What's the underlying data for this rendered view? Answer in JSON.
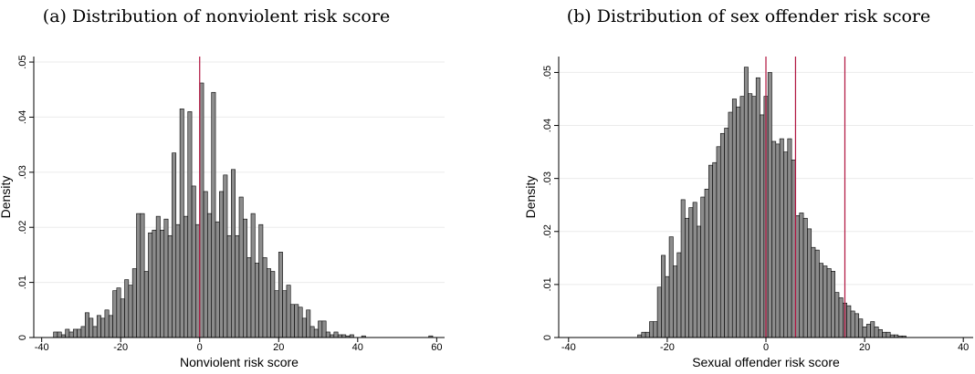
{
  "chart_data": [
    {
      "type": "histogram",
      "title": "(a) Distribution of nonviolent risk score",
      "xlabel": "Nonviolent risk score",
      "ylabel": "Density",
      "bins": [
        -37,
        -36,
        -35,
        -34,
        -33,
        -32,
        -31,
        -30,
        -29,
        -28,
        -27,
        -26,
        -25,
        -24,
        -23,
        -22,
        -21,
        -20,
        -19,
        -18,
        -17,
        -16,
        -15,
        -14,
        -13,
        -12,
        -11,
        -10,
        -9,
        -8,
        -7,
        -6,
        -5,
        -4,
        -3,
        -2,
        -1,
        0,
        1,
        2,
        3,
        4,
        5,
        6,
        7,
        8,
        9,
        10,
        11,
        12,
        13,
        14,
        15,
        16,
        17,
        18,
        19,
        20,
        21,
        22,
        23,
        24,
        25,
        26,
        27,
        28,
        29,
        30,
        31,
        32,
        33,
        34,
        35,
        36,
        37,
        38,
        39,
        40,
        41,
        42,
        43,
        44,
        45,
        46,
        47,
        48,
        49,
        50,
        51,
        52,
        53,
        54,
        55,
        56,
        57,
        58,
        59
      ],
      "values": [
        0.001,
        0.001,
        0.0005,
        0.0015,
        0.001,
        0.0015,
        0.0015,
        0.002,
        0.0045,
        0.0035,
        0.002,
        0.004,
        0.0035,
        0.005,
        0.004,
        0.0085,
        0.009,
        0.007,
        0.0105,
        0.0095,
        0.0125,
        0.0225,
        0.0225,
        0.012,
        0.019,
        0.0195,
        0.022,
        0.0195,
        0.0215,
        0.0185,
        0.0335,
        0.0205,
        0.0415,
        0.022,
        0.041,
        0.0275,
        0.0205,
        0.0462,
        0.0265,
        0.0225,
        0.0445,
        0.021,
        0.0265,
        0.0295,
        0.0185,
        0.0305,
        0.0185,
        0.0255,
        0.0215,
        0.0145,
        0.0225,
        0.0135,
        0.0205,
        0.0145,
        0.0125,
        0.012,
        0.0085,
        0.0155,
        0.0085,
        0.0095,
        0.006,
        0.006,
        0.0055,
        0.0035,
        0.005,
        0.002,
        0.0015,
        0.003,
        0.003,
        0.001,
        0.0005,
        0.001,
        0.0005,
        0.0005,
        0.0003,
        0.0005,
        0,
        0,
        0.0003,
        0,
        0,
        0,
        0,
        0,
        0,
        0,
        0,
        0,
        0,
        0,
        0,
        0,
        0,
        0,
        0,
        0.0003
      ],
      "color": "#8c8c8c",
      "vlines": [
        0
      ],
      "vline_color": "#b0133e",
      "xlim": [
        -42,
        62
      ],
      "xticks": [
        -40,
        -20,
        0,
        20,
        40,
        60
      ],
      "ylim": [
        0,
        0.051
      ],
      "yticks": [
        0,
        {
          "value": 0.01,
          "label": ".01"
        },
        {
          "value": 0.02,
          "label": ".02"
        },
        {
          "value": 0.03,
          "label": ".03"
        },
        {
          "value": 0.04,
          "label": ".04"
        },
        {
          "value": 0.05,
          "label": ".05"
        }
      ],
      "grid": true
    },
    {
      "type": "histogram",
      "title": "(b) Distribution of sex offender risk score",
      "xlabel": "Sexual offender risk score",
      "ylabel": "Density",
      "bins": [
        -26,
        -25.2,
        -24.4,
        -23.6,
        -22.8,
        -22,
        -21.2,
        -20.4,
        -19.6,
        -18.8,
        -18,
        -17.2,
        -16.4,
        -15.6,
        -14.8,
        -14,
        -13.2,
        -12.4,
        -11.6,
        -10.8,
        -10,
        -9.2,
        -8.4,
        -7.6,
        -6.8,
        -6,
        -5.2,
        -4.4,
        -3.6,
        -2.8,
        -2,
        -1.2,
        -0.4,
        0.4,
        1.2,
        2,
        2.8,
        3.6,
        4.4,
        5.2,
        6,
        6.8,
        7.6,
        8.4,
        9.2,
        10,
        10.8,
        11.6,
        12.4,
        13.2,
        14,
        14.8,
        15.6,
        16.4,
        17.2,
        18,
        18.8,
        19.6,
        20.4,
        21.2,
        22,
        22.8,
        23.6,
        24.4,
        25.2,
        26,
        26.8,
        27.6,
        28.4
      ],
      "values": [
        0.0005,
        0.001,
        0.001,
        0.003,
        0.003,
        0.0095,
        0.0155,
        0.0115,
        0.019,
        0.0135,
        0.016,
        0.026,
        0.0225,
        0.0245,
        0.0255,
        0.021,
        0.0265,
        0.028,
        0.0325,
        0.033,
        0.036,
        0.0385,
        0.0395,
        0.0425,
        0.045,
        0.0435,
        0.0455,
        0.051,
        0.046,
        0.0455,
        0.049,
        0.042,
        0.0455,
        0.05,
        0.037,
        0.0365,
        0.0375,
        0.035,
        0.0375,
        0.0335,
        0.023,
        0.0235,
        0.0225,
        0.0205,
        0.017,
        0.0165,
        0.014,
        0.0135,
        0.013,
        0.0125,
        0.0085,
        0.0075,
        0.0065,
        0.006,
        0.005,
        0.0045,
        0.0035,
        0.002,
        0.0025,
        0.003,
        0.002,
        0.0015,
        0.001,
        0.001,
        0.0005,
        0.0005,
        0.0003,
        0.0003
      ],
      "color": "#8c8c8c",
      "vlines": [
        0,
        6,
        16
      ],
      "vline_color": "#b0133e",
      "xlim": [
        -42,
        42
      ],
      "xticks": [
        -40,
        -20,
        0,
        20,
        40
      ],
      "ylim": [
        0,
        0.053
      ],
      "yticks": [
        0,
        {
          "value": 0.01,
          "label": ".01"
        },
        {
          "value": 0.02,
          "label": ".02"
        },
        {
          "value": 0.03,
          "label": ".03"
        },
        {
          "value": 0.04,
          "label": ".04"
        },
        {
          "value": 0.05,
          "label": ".05"
        }
      ],
      "grid": true
    }
  ]
}
